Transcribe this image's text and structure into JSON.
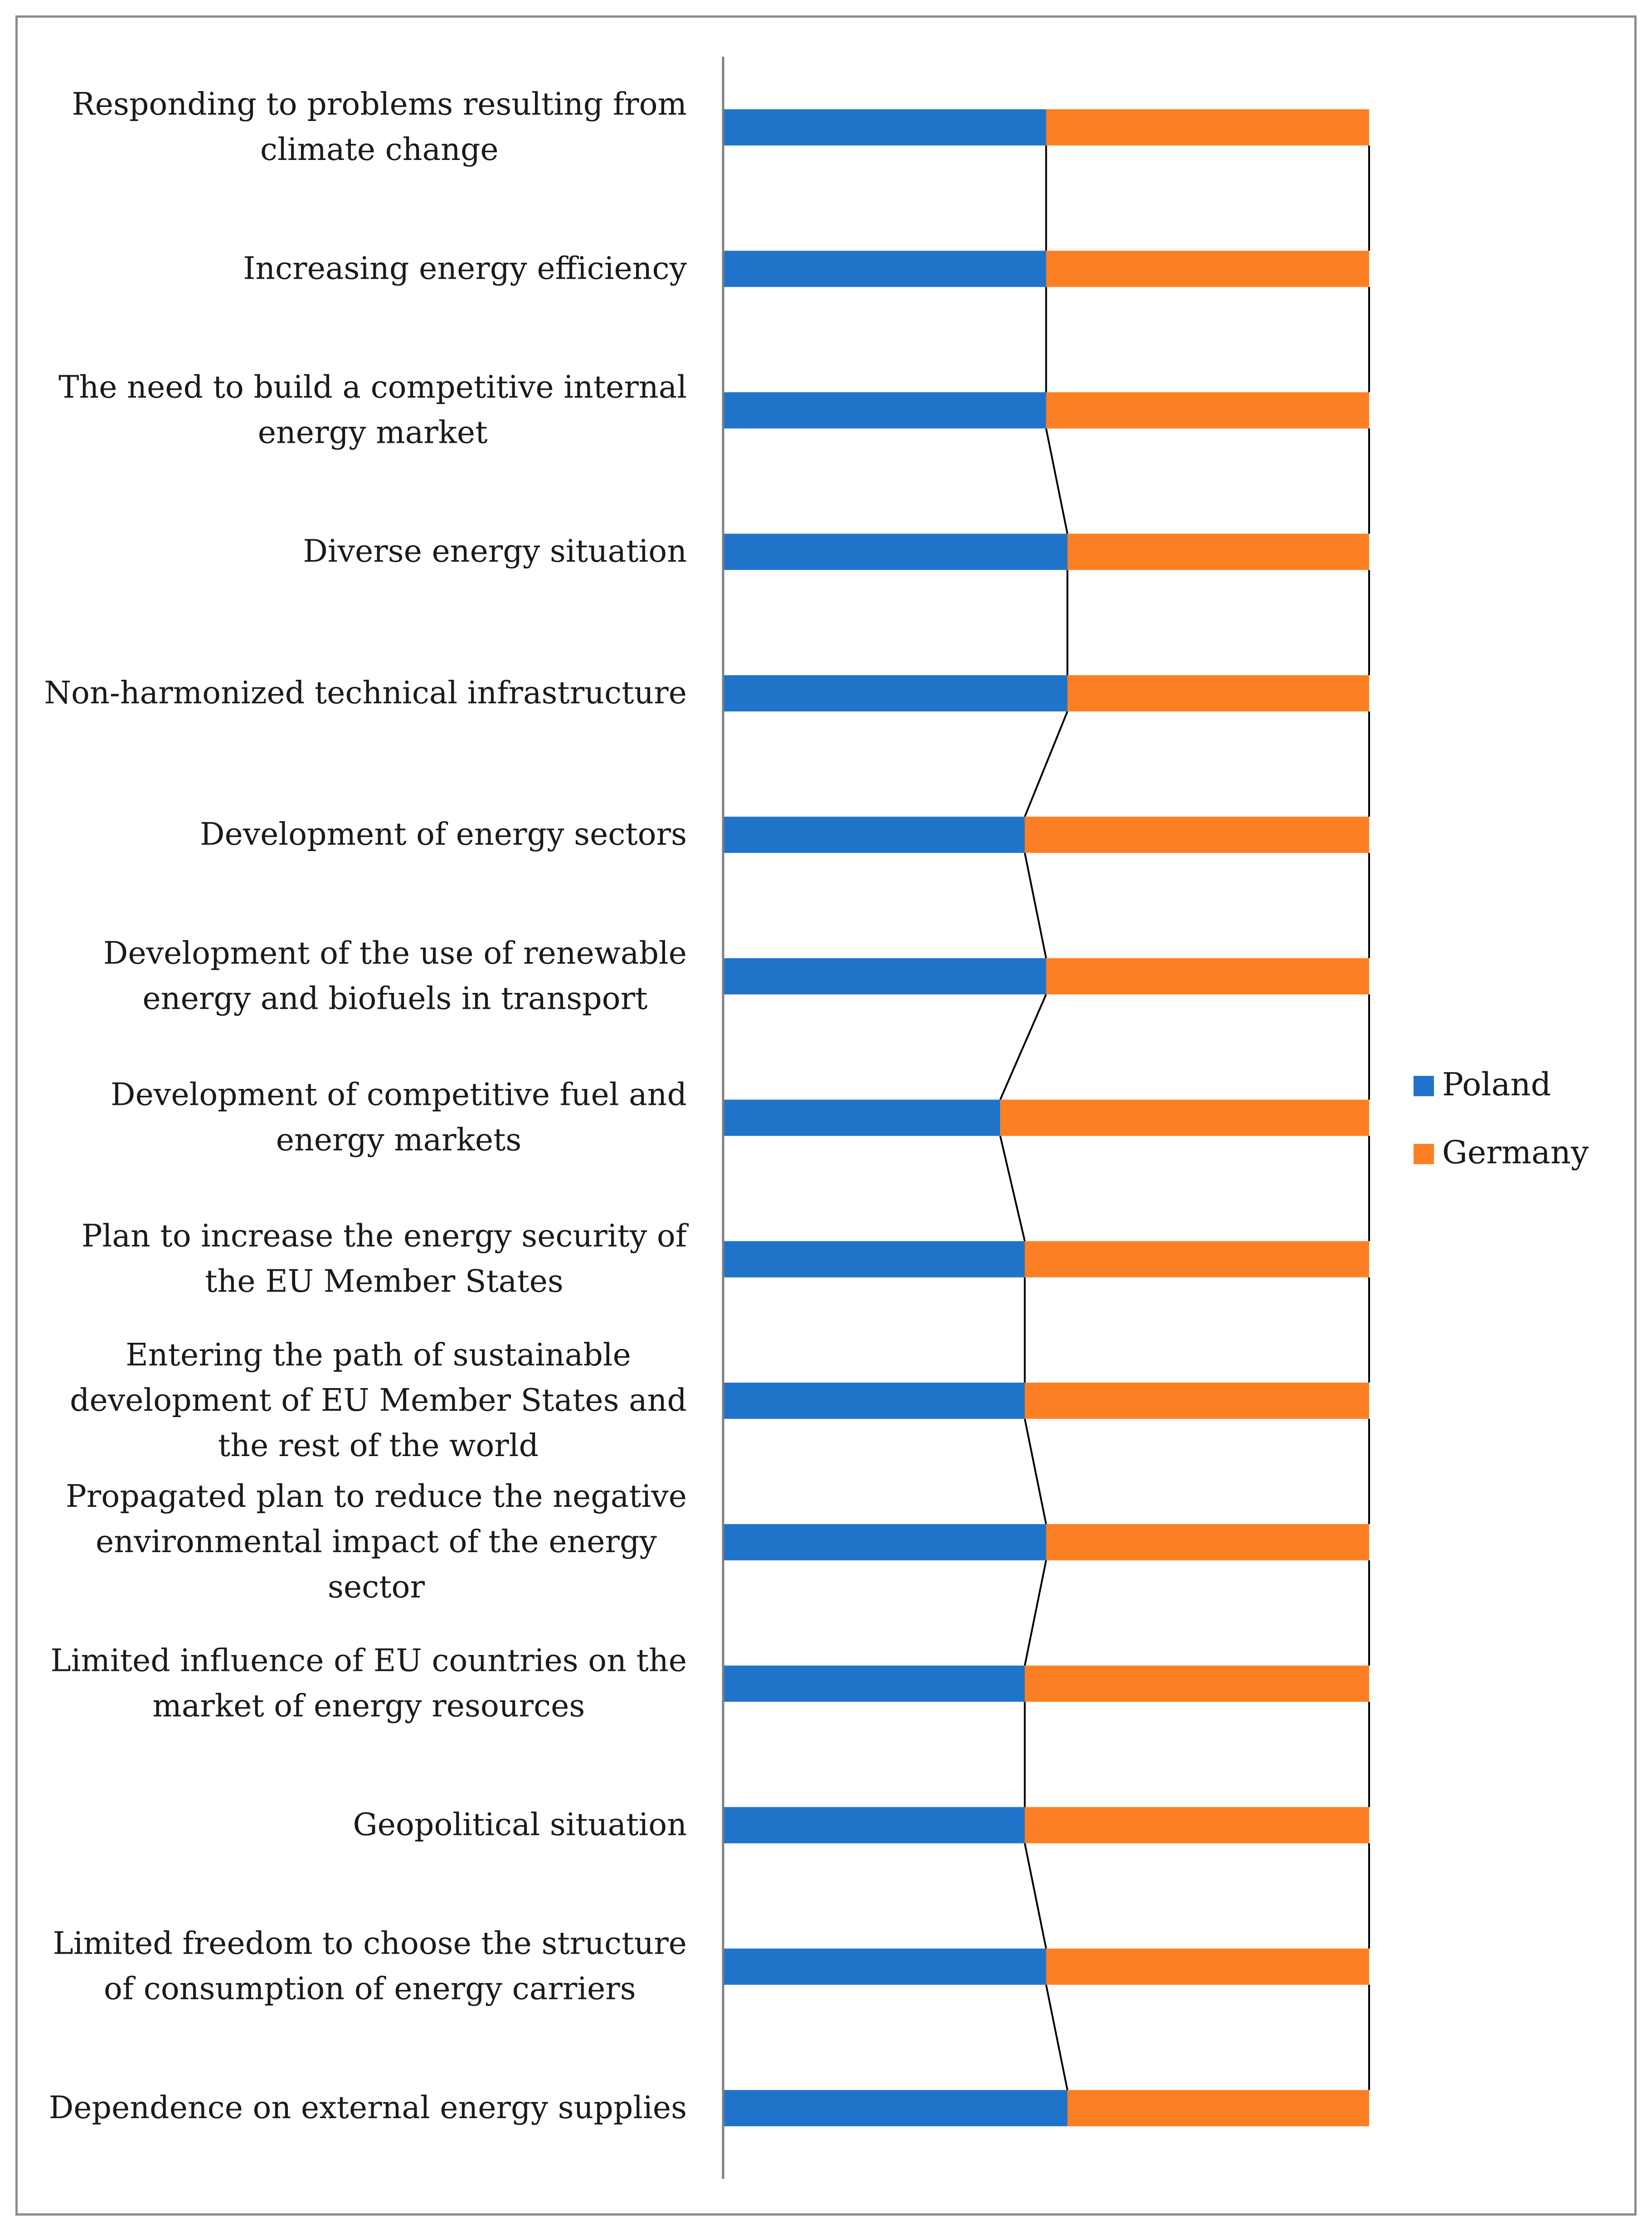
{
  "chart_data": {
    "type": "bar",
    "orientation": "horizontal",
    "stacking": "percent",
    "categories": [
      "Responding to problems resulting from climate change",
      "Increasing energy efficiency",
      "The need to build a competitive internal energy market",
      "Diverse energy situation",
      "Non-harmonized technical infrastructure",
      "Development of energy sectors",
      "Development of the use of renewable energy and biofuels in transport",
      "Development of competitive fuel and energy markets",
      "Plan to increase the energy security of the EU Member States",
      "Entering the path of sustainable development of EU Member States and the rest of the world",
      "Propagated plan to reduce the negative environmental impact of the energy sector",
      "Limited influence of EU countries on the market of energy resources",
      "Geopolitical situation",
      "Limited freedom to choose the structure of consumption of energy carriers",
      "Dependence on external energy supplies"
    ],
    "series": [
      {
        "name": "Poland",
        "color": "#1f74c9",
        "values": [
          50,
          50,
          50,
          53.3,
          53.3,
          46.7,
          50,
          42.9,
          46.7,
          46.7,
          50,
          46.7,
          46.7,
          50,
          53.3
        ]
      },
      {
        "name": "Germany",
        "color": "#fd7f23",
        "values": [
          50,
          50,
          50,
          46.7,
          46.7,
          53.3,
          50,
          57.1,
          53.3,
          53.3,
          50,
          53.3,
          53.3,
          50,
          46.7
        ]
      }
    ],
    "xlim": [
      0,
      100
    ],
    "series_lines": true,
    "legend": {
      "position": "right",
      "entries": [
        "Poland",
        "Germany"
      ]
    },
    "grid": false
  }
}
